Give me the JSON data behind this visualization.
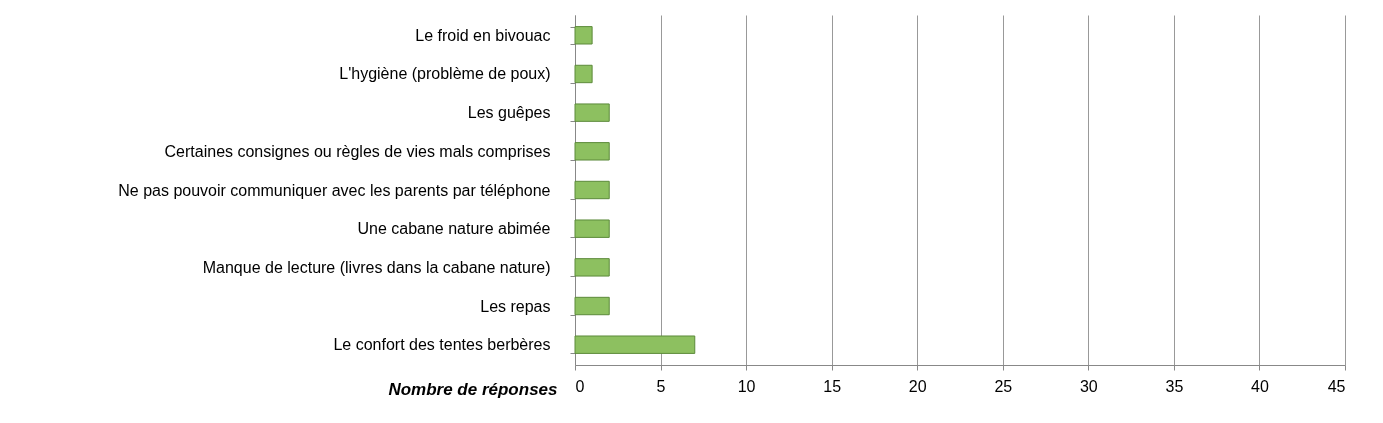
{
  "chart_data": {
    "type": "bar",
    "orientation": "horizontal",
    "xlabel": "Nombre de réponses",
    "categories": [
      "Le froid en bivouac",
      "L'hygiène (problème de poux)",
      "Les guêpes",
      "Certaines consignes ou règles de vies mals  comprises",
      "Ne pas pouvoir communiquer avec les parents par téléphone",
      "Une cabane nature abimée",
      "Manque de lecture (livres dans la cabane nature)",
      "Les repas",
      "Le confort des tentes berbères"
    ],
    "values": [
      1,
      1,
      2,
      2,
      2,
      2,
      2,
      2,
      7
    ],
    "color": "#8dc060",
    "xlim": [
      0,
      45
    ],
    "xticks": [
      0,
      5,
      10,
      15,
      20,
      25,
      30,
      35,
      40,
      45
    ],
    "grid": "x"
  }
}
